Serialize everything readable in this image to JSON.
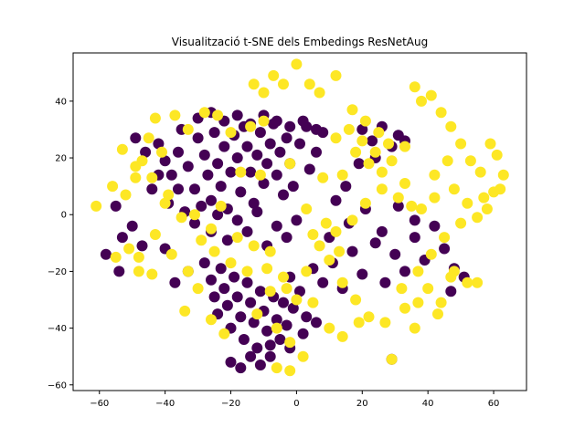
{
  "chart_data": {
    "type": "scatter",
    "title": "Visualització t-SNE dels Embedings ResNetAug",
    "xlabel": "",
    "ylabel": "",
    "xlim": [
      -68,
      70
    ],
    "ylim": [
      -62,
      57
    ],
    "xticks": [
      -60,
      -40,
      -20,
      0,
      20,
      40,
      60
    ],
    "yticks": [
      -60,
      -40,
      -20,
      0,
      20,
      40
    ],
    "xtick_labels": [
      "−60",
      "−40",
      "−20",
      "0",
      "20",
      "40",
      "60"
    ],
    "ytick_labels": [
      "−60",
      "−40",
      "−20",
      "0",
      "20",
      "40"
    ],
    "grid": false,
    "legend": false,
    "series": [
      {
        "color": "#440154",
        "points": [
          [
            -49,
            27
          ],
          [
            -46,
            22
          ],
          [
            -42,
            25
          ],
          [
            -40,
            19
          ],
          [
            -38,
            14
          ],
          [
            -36,
            22
          ],
          [
            -35,
            30
          ],
          [
            -33,
            17
          ],
          [
            -31,
            9
          ],
          [
            -30,
            27
          ],
          [
            -28,
            21
          ],
          [
            -27,
            14
          ],
          [
            -26,
            5
          ],
          [
            -25,
            29
          ],
          [
            -24,
            18
          ],
          [
            -23,
            10
          ],
          [
            -22,
            24
          ],
          [
            -21,
            2
          ],
          [
            -20,
            15
          ],
          [
            -19,
            28
          ],
          [
            -18,
            20
          ],
          [
            -17,
            8
          ],
          [
            -16,
            31
          ],
          [
            -15,
            24
          ],
          [
            -14,
            15
          ],
          [
            -13,
            4
          ],
          [
            -12,
            21
          ],
          [
            -11,
            29
          ],
          [
            -10,
            11
          ],
          [
            -9,
            18
          ],
          [
            -8,
            25
          ],
          [
            -7,
            32
          ],
          [
            -6,
            14
          ],
          [
            -5,
            22
          ],
          [
            -4,
            7
          ],
          [
            -3,
            27
          ],
          [
            -2,
            18
          ],
          [
            -1,
            10
          ],
          [
            1,
            25
          ],
          [
            3,
            31
          ],
          [
            4,
            16
          ],
          [
            6,
            22
          ],
          [
            8,
            29
          ],
          [
            -44,
            9
          ],
          [
            -42,
            14
          ],
          [
            -39,
            4
          ],
          [
            -36,
            9
          ],
          [
            -34,
            1
          ],
          [
            -31,
            -3
          ],
          [
            -29,
            3
          ],
          [
            -26,
            -6
          ],
          [
            -24,
            0
          ],
          [
            -21,
            -9
          ],
          [
            -18,
            -2
          ],
          [
            -15,
            -6
          ],
          [
            -12,
            1
          ],
          [
            -9,
            -11
          ],
          [
            -6,
            -4
          ],
          [
            -3,
            -8
          ],
          [
            0,
            -2
          ],
          [
            -28,
            -17
          ],
          [
            -26,
            -23
          ],
          [
            -25,
            -29
          ],
          [
            -24,
            -35
          ],
          [
            -23,
            -19
          ],
          [
            -22,
            -26
          ],
          [
            -21,
            -32
          ],
          [
            -20,
            -40
          ],
          [
            -19,
            -22
          ],
          [
            -18,
            -29
          ],
          [
            -17,
            -36
          ],
          [
            -16,
            -44
          ],
          [
            -15,
            -24
          ],
          [
            -14,
            -31
          ],
          [
            -13,
            -38
          ],
          [
            -12,
            -47
          ],
          [
            -11,
            -27
          ],
          [
            -10,
            -34
          ],
          [
            -9,
            -41
          ],
          [
            -8,
            -50
          ],
          [
            -7,
            -29
          ],
          [
            -6,
            -37
          ],
          [
            -5,
            -44
          ],
          [
            -4,
            -31
          ],
          [
            -3,
            -39
          ],
          [
            -2,
            -22
          ],
          [
            -1,
            -33
          ],
          [
            1,
            -27
          ],
          [
            3,
            -36
          ],
          [
            -20,
            -52
          ],
          [
            -17,
            -54
          ],
          [
            -14,
            -50
          ],
          [
            -11,
            -53
          ],
          [
            -8,
            -46
          ],
          [
            5,
            -19
          ],
          [
            8,
            -24
          ],
          [
            11,
            -17
          ],
          [
            14,
            -26
          ],
          [
            17,
            -13
          ],
          [
            20,
            -21
          ],
          [
            24,
            -10
          ],
          [
            27,
            -24
          ],
          [
            30,
            -14
          ],
          [
            33,
            -20
          ],
          [
            36,
            -8
          ],
          [
            39,
            -16
          ],
          [
            42,
            -4
          ],
          [
            45,
            -12
          ],
          [
            48,
            -19
          ],
          [
            51,
            -22
          ],
          [
            20,
            30
          ],
          [
            23,
            26
          ],
          [
            26,
            31
          ],
          [
            29,
            24
          ],
          [
            31,
            28
          ],
          [
            33,
            26
          ],
          [
            -55,
            3
          ],
          [
            -50,
            -4
          ],
          [
            -47,
            -11
          ],
          [
            -53,
            -8
          ],
          [
            12,
            5
          ],
          [
            16,
            -3
          ],
          [
            21,
            2
          ],
          [
            26,
            -6
          ],
          [
            31,
            3
          ],
          [
            36,
            -2
          ],
          [
            10,
            -8
          ],
          [
            15,
            10
          ],
          [
            19,
            18
          ],
          [
            24,
            20
          ],
          [
            -30,
            34
          ],
          [
            -26,
            36
          ],
          [
            -22,
            33
          ],
          [
            -18,
            35
          ],
          [
            -14,
            32
          ],
          [
            -10,
            35
          ],
          [
            -6,
            33
          ],
          [
            -2,
            31
          ],
          [
            2,
            33
          ],
          [
            6,
            30
          ],
          [
            -58,
            -14
          ],
          [
            -54,
            -20
          ],
          [
            -40,
            -12
          ],
          [
            -37,
            -24
          ],
          [
            -33,
            -20
          ],
          [
            29,
            -51
          ],
          [
            47,
            -27
          ],
          [
            -2,
            -47
          ],
          [
            2,
            -42
          ],
          [
            6,
            -38
          ]
        ]
      },
      {
        "color": "#fde725",
        "points": [
          [
            -61,
            3
          ],
          [
            -56,
            10
          ],
          [
            -52,
            7
          ],
          [
            -49,
            13
          ],
          [
            -47,
            19
          ],
          [
            -45,
            27
          ],
          [
            -43,
            34
          ],
          [
            -41,
            22
          ],
          [
            -37,
            35
          ],
          [
            -33,
            30
          ],
          [
            -28,
            36
          ],
          [
            -24,
            35
          ],
          [
            -20,
            29
          ],
          [
            -14,
            31
          ],
          [
            -10,
            33
          ],
          [
            -13,
            46
          ],
          [
            -10,
            43
          ],
          [
            -7,
            49
          ],
          [
            -4,
            46
          ],
          [
            0,
            53
          ],
          [
            4,
            46
          ],
          [
            7,
            43
          ],
          [
            12,
            49
          ],
          [
            17,
            37
          ],
          [
            21,
            33
          ],
          [
            25,
            29
          ],
          [
            28,
            25
          ],
          [
            33,
            24
          ],
          [
            36,
            45
          ],
          [
            38,
            40
          ],
          [
            41,
            42
          ],
          [
            44,
            36
          ],
          [
            47,
            31
          ],
          [
            50,
            25
          ],
          [
            53,
            19
          ],
          [
            56,
            15
          ],
          [
            59,
            25
          ],
          [
            61,
            21
          ],
          [
            63,
            14
          ],
          [
            62,
            9
          ],
          [
            46,
            19
          ],
          [
            42,
            14
          ],
          [
            48,
            9
          ],
          [
            52,
            4
          ],
          [
            57,
            6
          ],
          [
            60,
            8
          ],
          [
            45,
            -8
          ],
          [
            50,
            -3
          ],
          [
            55,
            -1
          ],
          [
            58,
            2
          ],
          [
            41,
            -14
          ],
          [
            37,
            -20
          ],
          [
            40,
            -26
          ],
          [
            44,
            -31
          ],
          [
            48,
            -20
          ],
          [
            52,
            -24
          ],
          [
            55,
            -24
          ],
          [
            33,
            -33
          ],
          [
            36,
            -40
          ],
          [
            29,
            -51
          ],
          [
            22,
            -36
          ],
          [
            18,
            -30
          ],
          [
            14,
            -24
          ],
          [
            10,
            -16
          ],
          [
            12,
            -6
          ],
          [
            17,
            -2
          ],
          [
            21,
            4
          ],
          [
            26,
            9
          ],
          [
            31,
            6
          ],
          [
            35,
            3
          ],
          [
            14,
            14
          ],
          [
            18,
            22
          ],
          [
            22,
            18
          ],
          [
            26,
            15
          ],
          [
            29,
            19
          ],
          [
            33,
            11
          ],
          [
            38,
            2
          ],
          [
            42,
            6
          ],
          [
            7,
            -11
          ],
          [
            3,
            -20
          ],
          [
            -4,
            -22
          ],
          [
            -8,
            -27
          ],
          [
            -12,
            -35
          ],
          [
            -6,
            -40
          ],
          [
            -2,
            -45
          ],
          [
            2,
            -50
          ],
          [
            -6,
            -54
          ],
          [
            -2,
            -55
          ],
          [
            -22,
            -42
          ],
          [
            -26,
            -37
          ],
          [
            -30,
            -26
          ],
          [
            -33,
            -20
          ],
          [
            -34,
            -34
          ],
          [
            -38,
            -14
          ],
          [
            -43,
            -7
          ],
          [
            -48,
            -15
          ],
          [
            -51,
            -12
          ],
          [
            -55,
            -15
          ],
          [
            -48,
            -20
          ],
          [
            -44,
            -21
          ],
          [
            -40,
            4
          ],
          [
            -35,
            -1
          ],
          [
            -29,
            -9
          ],
          [
            -25,
            -13
          ],
          [
            -18,
            -8
          ],
          [
            -13,
            -11
          ],
          [
            -8,
            -13
          ],
          [
            5,
            -7
          ],
          [
            9,
            -3
          ],
          [
            13,
            -13
          ],
          [
            -23,
            3
          ],
          [
            -17,
            15
          ],
          [
            -11,
            14
          ],
          [
            -2,
            18
          ],
          [
            3,
            2
          ],
          [
            8,
            13
          ],
          [
            12,
            27
          ],
          [
            16,
            30
          ],
          [
            20,
            26
          ],
          [
            24,
            22
          ],
          [
            -53,
            23
          ],
          [
            -49,
            17
          ],
          [
            -44,
            13
          ],
          [
            -39,
            7
          ],
          [
            -31,
            0
          ],
          [
            -26,
            -5
          ],
          [
            -20,
            -17
          ],
          [
            -15,
            -20
          ],
          [
            -9,
            -19
          ],
          [
            -3,
            -26
          ],
          [
            0,
            -30
          ],
          [
            5,
            -31
          ],
          [
            10,
            -40
          ],
          [
            14,
            -43
          ],
          [
            19,
            -38
          ],
          [
            27,
            -38
          ],
          [
            32,
            -26
          ],
          [
            37,
            -31
          ],
          [
            43,
            -35
          ],
          [
            47,
            -22
          ]
        ]
      }
    ]
  }
}
